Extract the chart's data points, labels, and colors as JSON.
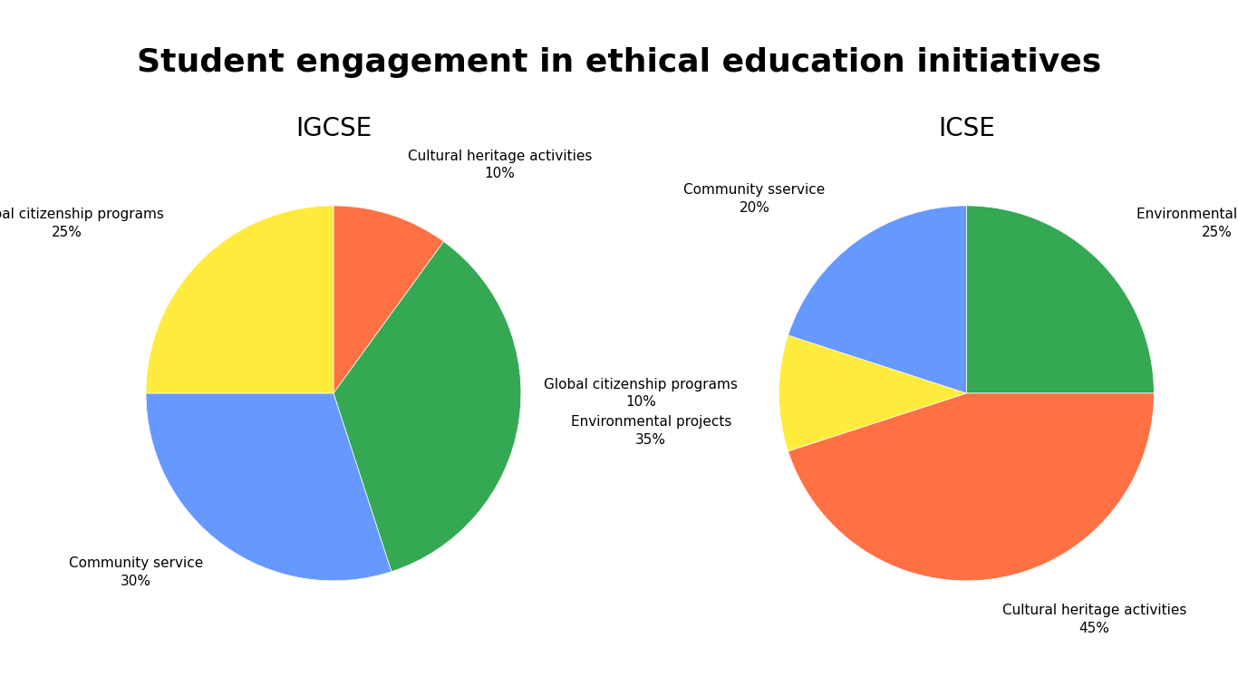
{
  "title": "Student engagement in ethical education initiatives",
  "title_fontsize": 26,
  "title_fontweight": "bold",
  "background_color": "#ffffff",
  "igcse": {
    "subtitle": "IGCSE",
    "subtitle_fontsize": 20,
    "values": [
      10,
      35,
      30,
      25
    ],
    "colors": [
      "#FF7043",
      "#34A853",
      "#6699FF",
      "#FFEB3B"
    ],
    "startangle": 90,
    "label_lines": [
      [
        "Cultural heritage activities",
        "10%"
      ],
      [
        "Environmental projects",
        "35%"
      ],
      [
        "Community service",
        "30%"
      ],
      [
        "Global citizenship programs",
        "25%"
      ]
    ],
    "label_distances": [
      1.28,
      1.28,
      1.18,
      1.28
    ]
  },
  "icse": {
    "subtitle": "ICSE",
    "subtitle_fontsize": 20,
    "values": [
      25,
      45,
      10,
      20
    ],
    "colors": [
      "#34A853",
      "#FF7043",
      "#FFEB3B",
      "#6699FF"
    ],
    "startangle": 90,
    "label_lines": [
      [
        "Environmental projects",
        "25%"
      ],
      [
        "Cultural heritage activities",
        "45%"
      ],
      [
        "Global citizenship programs",
        "10%"
      ],
      [
        "Community sservice",
        "20%"
      ]
    ],
    "label_distances": [
      1.28,
      1.22,
      1.22,
      1.28
    ]
  },
  "label_fontsize": 11
}
